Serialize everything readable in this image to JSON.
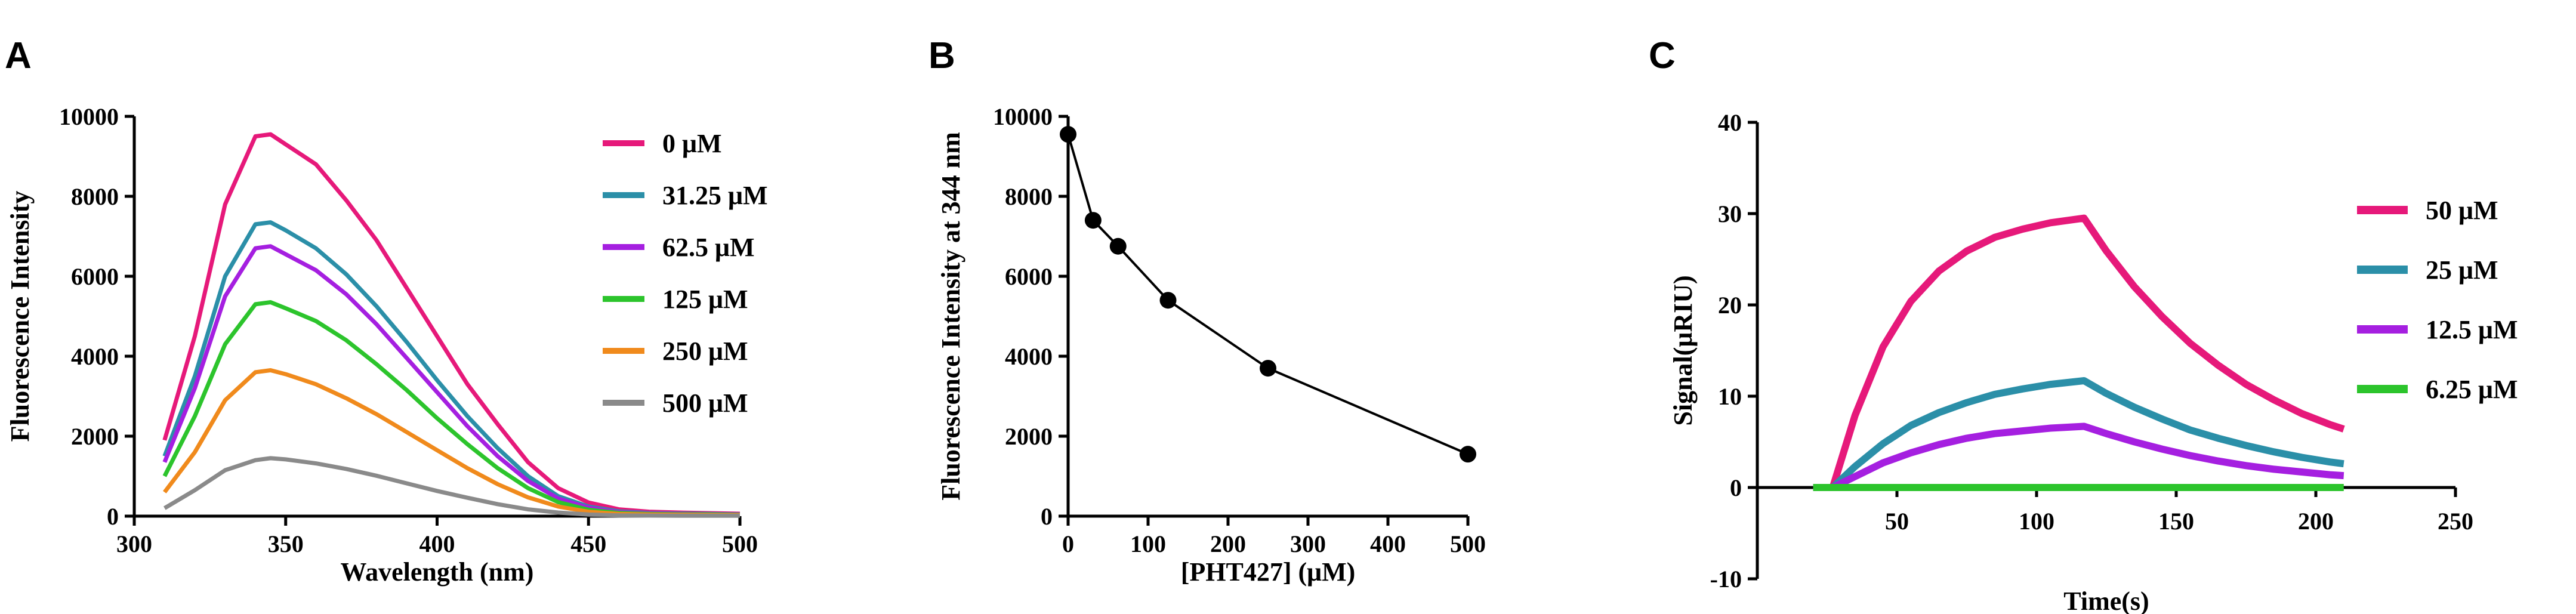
{
  "chart_data": [
    {
      "panel": "A",
      "type": "line",
      "xlabel": "Wavelength (nm)",
      "ylabel": "Fluorescence Intensity",
      "xlim": [
        300,
        500
      ],
      "ylim": [
        0,
        10000
      ],
      "xticks": [
        "300",
        "350",
        "400",
        "450",
        "500"
      ],
      "yticks": [
        "0",
        "2000",
        "4000",
        "6000",
        "8000",
        "10000"
      ],
      "legend_position": "right",
      "x": [
        310,
        320,
        330,
        340,
        345,
        350,
        360,
        370,
        380,
        390,
        400,
        410,
        420,
        430,
        440,
        450,
        460,
        470,
        480,
        490,
        500
      ],
      "series": [
        {
          "name": "0 μM",
          "color": "#e6197a",
          "values": [
            1900,
            4500,
            7800,
            9500,
            9550,
            9300,
            8800,
            7900,
            6900,
            5700,
            4500,
            3300,
            2300,
            1350,
            700,
            340,
            170,
            110,
            90,
            75,
            60
          ]
        },
        {
          "name": "31.25 μM",
          "color": "#2b8fa8",
          "values": [
            1500,
            3500,
            6000,
            7300,
            7350,
            7150,
            6700,
            6050,
            5250,
            4350,
            3400,
            2500,
            1700,
            1000,
            500,
            240,
            120,
            80,
            65,
            55,
            45
          ]
        },
        {
          "name": "62.5 μM",
          "color": "#a51fe0",
          "values": [
            1350,
            3200,
            5500,
            6700,
            6750,
            6550,
            6150,
            5550,
            4800,
            3950,
            3100,
            2250,
            1500,
            880,
            440,
            210,
            100,
            70,
            55,
            45,
            40
          ]
        },
        {
          "name": "125 μM",
          "color": "#2cc42c",
          "values": [
            1000,
            2500,
            4300,
            5300,
            5350,
            5200,
            4880,
            4400,
            3800,
            3150,
            2450,
            1800,
            1200,
            700,
            350,
            160,
            80,
            55,
            45,
            40,
            35
          ]
        },
        {
          "name": "250 μM",
          "color": "#f08a1c",
          "values": [
            600,
            1600,
            2900,
            3600,
            3650,
            3550,
            3300,
            2950,
            2550,
            2100,
            1650,
            1200,
            800,
            470,
            240,
            110,
            55,
            40,
            35,
            30,
            25
          ]
        },
        {
          "name": "500 μM",
          "color": "#8a8a8a",
          "values": [
            200,
            650,
            1150,
            1400,
            1450,
            1420,
            1320,
            1180,
            1010,
            820,
            630,
            460,
            300,
            170,
            90,
            40,
            20,
            15,
            12,
            10,
            10
          ]
        }
      ]
    },
    {
      "panel": "B",
      "type": "scatter",
      "xlabel": "[PHT427] (μM)",
      "ylabel": "Fluorescence Intensity at 344 nm",
      "xlim": [
        0,
        500
      ],
      "ylim": [
        0,
        10000
      ],
      "xticks": [
        "0",
        "100",
        "200",
        "300",
        "400",
        "500"
      ],
      "yticks": [
        "0",
        "2000",
        "4000",
        "6000",
        "8000",
        "10000"
      ],
      "x": [
        0,
        31.25,
        62.5,
        125,
        250,
        500
      ],
      "values": [
        9550,
        7400,
        6750,
        5400,
        3700,
        1550
      ],
      "color": "#000000",
      "connected": true
    },
    {
      "panel": "C",
      "type": "line",
      "xlabel": "Time(s)",
      "ylabel": "Signal(μRIU)",
      "xlim": [
        0,
        250
      ],
      "ylim": [
        -10,
        40
      ],
      "xticks": [
        "50",
        "100",
        "150",
        "200",
        "250"
      ],
      "yticks": [
        "-10",
        "0",
        "10",
        "20",
        "30",
        "40"
      ],
      "legend_position": "right",
      "x": [
        20,
        25,
        27,
        35,
        45,
        55,
        65,
        75,
        85,
        95,
        105,
        117,
        125,
        135,
        145,
        155,
        165,
        175,
        185,
        195,
        205,
        210
      ],
      "series": [
        {
          "name": "50 μM",
          "color": "#e6197a",
          "values": [
            0,
            0,
            0,
            7.9,
            15.4,
            20.4,
            23.7,
            25.9,
            27.4,
            28.3,
            29.0,
            29.5,
            25.9,
            22.0,
            18.7,
            15.8,
            13.4,
            11.3,
            9.6,
            8.1,
            6.9,
            6.4
          ]
        },
        {
          "name": "25 μM",
          "color": "#2b8fa8",
          "values": [
            0,
            0,
            0,
            2.3,
            4.8,
            6.8,
            8.2,
            9.3,
            10.2,
            10.8,
            11.3,
            11.7,
            10.3,
            8.8,
            7.5,
            6.3,
            5.4,
            4.6,
            3.9,
            3.3,
            2.8,
            2.6
          ]
        },
        {
          "name": "12.5 μM",
          "color": "#a51fe0",
          "values": [
            0,
            0,
            0,
            1.2,
            2.7,
            3.8,
            4.7,
            5.4,
            5.9,
            6.2,
            6.5,
            6.7,
            5.9,
            5.0,
            4.2,
            3.5,
            2.9,
            2.4,
            2.0,
            1.7,
            1.4,
            1.3
          ]
        },
        {
          "name": "6.25 μM",
          "color": "#2cc42c",
          "values": [
            0,
            0,
            0,
            0,
            0,
            0,
            0,
            0,
            0,
            0,
            0,
            0,
            0,
            0,
            0,
            0,
            0,
            0,
            0,
            0,
            0,
            0
          ]
        }
      ]
    }
  ],
  "panels": [
    "A",
    "B",
    "C"
  ]
}
